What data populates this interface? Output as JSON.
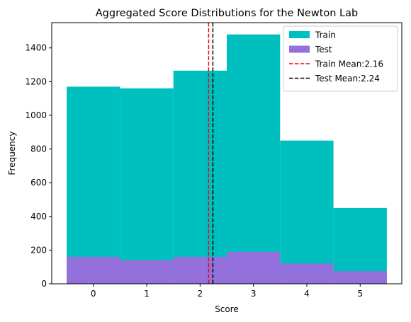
{
  "chart_data": {
    "type": "bar",
    "title": "Aggregated Score Distributions for the Newton Lab",
    "xlabel": "Score",
    "ylabel": "Frequency",
    "categories": [
      0,
      1,
      2,
      3,
      4,
      5
    ],
    "xlim": [
      -0.78,
      5.78
    ],
    "ylim": [
      0,
      1550
    ],
    "xticks": [
      0,
      1,
      2,
      3,
      4,
      5
    ],
    "yticks": [
      0,
      200,
      400,
      600,
      800,
      1000,
      1200,
      1400
    ],
    "series": [
      {
        "name": "Train",
        "color": "#00bfbf",
        "values": [
          1170,
          1160,
          1265,
          1480,
          850,
          450
        ]
      },
      {
        "name": "Test",
        "color": "#9370db",
        "values": [
          160,
          140,
          160,
          190,
          120,
          75
        ]
      }
    ],
    "mean_lines": [
      {
        "name": "Train Mean:2.16",
        "value": 2.16,
        "color": "#ff0000",
        "style": "dashed"
      },
      {
        "name": "Test Mean:2.24",
        "value": 2.24,
        "color": "#000000",
        "style": "dashed"
      }
    ],
    "legend": [
      {
        "label": "Train",
        "kind": "patch",
        "color": "#00bfbf"
      },
      {
        "label": "Test",
        "kind": "patch",
        "color": "#9370db"
      },
      {
        "label": "Train Mean:2.16",
        "kind": "line",
        "color": "#ff0000"
      },
      {
        "label": "Test Mean:2.24",
        "kind": "line",
        "color": "#000000"
      }
    ],
    "legend_position": "top-right",
    "grid": false
  }
}
